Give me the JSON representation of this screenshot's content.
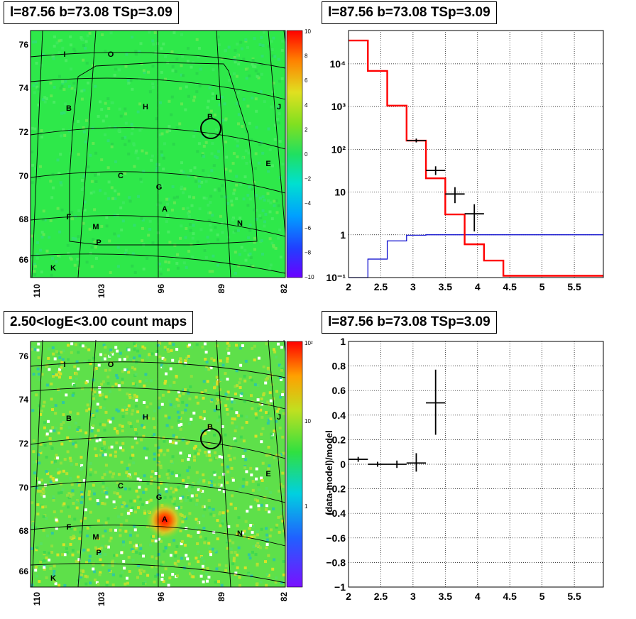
{
  "panels": {
    "tl_title": "l=87.56 b=73.08 TSp=3.09",
    "tr_title": "l=87.56 b=73.08 TSp=3.09",
    "bl_title": "2.50<logE<3.00 count maps",
    "br_title": "l=87.56 b=73.08 TSp=3.09"
  },
  "colors": {
    "model": "#ff0000",
    "background": "#0000cc",
    "data": "#000000"
  },
  "chart_data": [
    {
      "type": "heatmap",
      "id": "residual_map",
      "x_ticks": [
        "110",
        "103",
        "96",
        "89",
        "82"
      ],
      "y_ticks": [
        "76",
        "74",
        "72",
        "70",
        "68",
        "66"
      ],
      "colorbar_ticks": [
        "10",
        "8",
        "6",
        "4",
        "2",
        "0",
        "−2",
        "−4",
        "−6",
        "−8",
        "−10"
      ],
      "sources": [
        "I",
        "O",
        "B",
        "H",
        "L",
        "B",
        "J",
        "E",
        "C",
        "G",
        "A",
        "F",
        "M",
        "N",
        "P",
        "K"
      ]
    },
    {
      "type": "line",
      "id": "spectrum",
      "x_ticks": [
        "2",
        "2.5",
        "3",
        "3.5",
        "4",
        "4.5",
        "5",
        "5.5"
      ],
      "y_ticks": [
        "10⁻¹",
        "1",
        "10",
        "10²",
        "10³",
        "10⁴"
      ],
      "xlim": [
        2,
        5.95
      ],
      "ylim": [
        0.1,
        60000
      ],
      "yscale": "log",
      "grid": true,
      "model_edges": [
        2.0,
        2.3,
        2.6,
        2.9,
        3.2,
        3.5,
        3.8,
        4.1,
        4.4,
        5.95
      ],
      "model_values": [
        35000,
        6800,
        1050,
        160,
        21,
        3,
        0.6,
        0.25,
        0.11
      ],
      "bg_edges": [
        2.0,
        2.3,
        2.6,
        2.9,
        3.2,
        5.95
      ],
      "bg_values": [
        0.05,
        0.27,
        0.72,
        0.98,
        1.0
      ],
      "data_points": [
        {
          "x": 3.05,
          "y": 160,
          "xerr": 0.15,
          "ylo": 145,
          "yhi": 178
        },
        {
          "x": 3.35,
          "y": 32,
          "xerr": 0.15,
          "ylo": 25,
          "yhi": 40
        },
        {
          "x": 3.65,
          "y": 9,
          "xerr": 0.15,
          "ylo": 5.5,
          "yhi": 13
        },
        {
          "x": 3.95,
          "y": 3.1,
          "xerr": 0.15,
          "ylo": 1.2,
          "yhi": 5.2
        }
      ]
    },
    {
      "type": "heatmap",
      "id": "count_map",
      "x_ticks": [
        "110",
        "103",
        "96",
        "89",
        "82"
      ],
      "y_ticks": [
        "76",
        "74",
        "72",
        "70",
        "68",
        "66"
      ],
      "colorbar_ticks": [
        "10²",
        "10",
        "1"
      ],
      "sources": [
        "I",
        "O",
        "B",
        "H",
        "L",
        "B",
        "J",
        "E",
        "C",
        "G",
        "A",
        "F",
        "M",
        "N",
        "P",
        "K"
      ]
    },
    {
      "type": "scatter",
      "id": "residuals",
      "ylabel": "(data-model)/model",
      "x_ticks": [
        "2",
        "2.5",
        "3",
        "3.5",
        "4",
        "4.5",
        "5",
        "5.5"
      ],
      "y_ticks": [
        "−1",
        "−0.8",
        "−0.6",
        "−0.4",
        "−0.2",
        "0",
        "0.2",
        "0.4",
        "0.6",
        "0.8",
        "1"
      ],
      "xlim": [
        2,
        5.95
      ],
      "ylim": [
        -1,
        1
      ],
      "grid": true,
      "points": [
        {
          "x": 2.15,
          "y": 0.04,
          "xerr": 0.15,
          "ylo": 0.02,
          "yhi": 0.06
        },
        {
          "x": 2.45,
          "y": 0.0,
          "xerr": 0.15,
          "ylo": -0.02,
          "yhi": 0.02
        },
        {
          "x": 2.75,
          "y": 0.0,
          "xerr": 0.15,
          "ylo": -0.03,
          "yhi": 0.03
        },
        {
          "x": 3.05,
          "y": 0.01,
          "xerr": 0.15,
          "ylo": -0.06,
          "yhi": 0.09
        },
        {
          "x": 3.35,
          "y": 0.5,
          "xerr": 0.15,
          "ylo": 0.24,
          "yhi": 0.77
        }
      ]
    }
  ]
}
